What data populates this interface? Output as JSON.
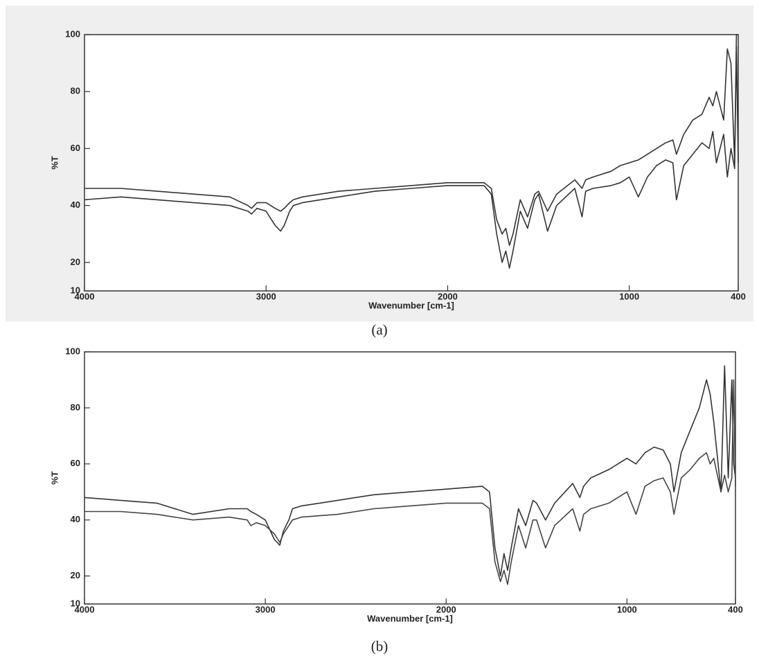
{
  "chart_data": [
    {
      "type": "line",
      "caption": "(a)",
      "xlabel": "Wavenumber [cm-1]",
      "ylabel": "%T",
      "x": [
        4000,
        3800,
        3600,
        3400,
        3200,
        3100,
        3080,
        3050,
        3000,
        2950,
        2920,
        2900,
        2870,
        2850,
        2800,
        2600,
        2400,
        2200,
        2000,
        1800,
        1760,
        1730,
        1700,
        1680,
        1660,
        1640,
        1600,
        1560,
        1520,
        1500,
        1450,
        1400,
        1300,
        1260,
        1240,
        1200,
        1100,
        1050,
        1000,
        950,
        900,
        850,
        800,
        760,
        740,
        700,
        650,
        600,
        560,
        540,
        520,
        480,
        460,
        440,
        420,
        410,
        400
      ],
      "series": [
        {
          "color": "#333333",
          "values": [
            46,
            46,
            45,
            44,
            43,
            40,
            39,
            41,
            41,
            39,
            38,
            39,
            41,
            42,
            43,
            45,
            46,
            47,
            48,
            48,
            46,
            35,
            30,
            32,
            26,
            30,
            42,
            36,
            44,
            45,
            38,
            44,
            49,
            46,
            49,
            50,
            52,
            54,
            55,
            56,
            58,
            60,
            62,
            63,
            58,
            65,
            70,
            72,
            78,
            75,
            80,
            70,
            95,
            90,
            55,
            100,
            100
          ]
        },
        {
          "color": "#333333",
          "values": [
            42,
            43,
            42,
            41,
            40,
            38,
            37,
            39,
            38,
            33,
            31,
            33,
            38,
            40,
            41,
            43,
            45,
            46,
            47,
            47,
            44,
            30,
            20,
            24,
            18,
            24,
            38,
            32,
            42,
            44,
            31,
            40,
            46,
            36,
            45,
            46,
            47,
            48,
            50,
            43,
            50,
            54,
            56,
            55,
            42,
            54,
            58,
            62,
            60,
            66,
            55,
            65,
            50,
            60,
            53,
            96,
            55
          ]
        }
      ],
      "xlim": [
        4000,
        400
      ],
      "xticks": [
        4000,
        3000,
        2000,
        1000,
        400
      ],
      "ylim": [
        10,
        100
      ],
      "yticks": [
        10,
        20,
        40,
        60,
        80,
        100
      ]
    },
    {
      "type": "line",
      "caption": "(b)",
      "xlabel": "Wavenumber [cm-1]",
      "ylabel": "%T",
      "x": [
        4000,
        3800,
        3600,
        3400,
        3200,
        3100,
        3080,
        3050,
        3000,
        2950,
        2920,
        2900,
        2870,
        2850,
        2800,
        2600,
        2400,
        2200,
        2000,
        1800,
        1760,
        1730,
        1700,
        1680,
        1660,
        1640,
        1600,
        1560,
        1520,
        1500,
        1450,
        1400,
        1300,
        1260,
        1240,
        1200,
        1100,
        1050,
        1000,
        950,
        900,
        850,
        800,
        760,
        740,
        700,
        650,
        600,
        560,
        540,
        520,
        480,
        460,
        440,
        420,
        410,
        400
      ],
      "series": [
        {
          "color": "#333333",
          "values": [
            48,
            47,
            46,
            42,
            44,
            44,
            43,
            42,
            40,
            33,
            31,
            36,
            40,
            44,
            45,
            47,
            49,
            50,
            51,
            52,
            50,
            30,
            20,
            28,
            22,
            30,
            44,
            38,
            47,
            46,
            40,
            46,
            53,
            48,
            52,
            55,
            58,
            60,
            62,
            60,
            64,
            66,
            65,
            60,
            50,
            64,
            72,
            80,
            90,
            85,
            75,
            50,
            95,
            55,
            90,
            60,
            55
          ]
        },
        {
          "color": "#444444",
          "values": [
            43,
            43,
            42,
            40,
            41,
            40,
            38,
            39,
            38,
            35,
            32,
            35,
            38,
            40,
            41,
            42,
            44,
            45,
            46,
            46,
            44,
            25,
            18,
            22,
            17,
            25,
            38,
            30,
            40,
            40,
            30,
            38,
            44,
            36,
            42,
            44,
            46,
            48,
            50,
            42,
            52,
            54,
            55,
            50,
            42,
            55,
            58,
            62,
            64,
            60,
            62,
            50,
            56,
            50,
            55,
            90,
            52
          ]
        }
      ],
      "xlim": [
        4000,
        400
      ],
      "xticks": [
        4000,
        3000,
        2000,
        1000,
        400
      ],
      "ylim": [
        10,
        100
      ],
      "yticks": [
        10,
        20,
        40,
        60,
        80,
        100
      ]
    }
  ]
}
